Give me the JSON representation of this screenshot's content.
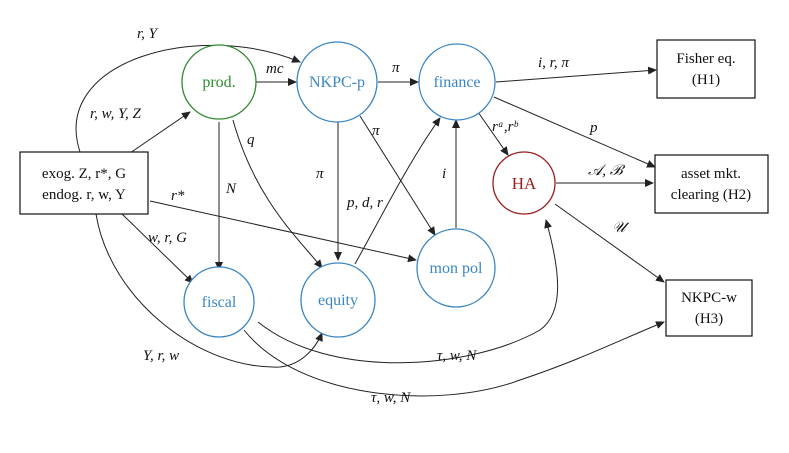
{
  "nodes": {
    "prod": {
      "label": "prod.",
      "color": "#2e8b2e"
    },
    "nkpc_p": {
      "label": "NKPC-p",
      "color": "#3a86c4"
    },
    "finance": {
      "label": "finance",
      "color": "#3a86c4"
    },
    "ha": {
      "label": "HA",
      "color": "#9b1c1c"
    },
    "mon_pol": {
      "label": "mon pol",
      "color": "#3a86c4"
    },
    "fiscal": {
      "label": "fiscal",
      "color": "#3a86c4"
    },
    "equity": {
      "label": "equity",
      "color": "#3a86c4"
    }
  },
  "boxes": {
    "exog": {
      "line1": "exog. Z, r*, G",
      "line2": "endog. r, w, Y"
    },
    "fisher": {
      "line1": "Fisher eq.",
      "line2": "(H1)"
    },
    "asset": {
      "line1": "asset mkt.",
      "line2": "clearing (H2)"
    },
    "nkpc_w": {
      "line1": "NKPC-w",
      "line2": "(H3)"
    }
  },
  "edge_labels": {
    "r_Y": "r, Y",
    "r_w_Y_Z": "r, w, Y, Z",
    "mc": "mc",
    "pi_top": "π",
    "i_r_pi": "i, r, π",
    "q": "q",
    "N": "N",
    "pi_mid": "π",
    "pi_left": "π",
    "p_d_r": "p, d, r",
    "i": "i",
    "ra_rb": "rᵃ,rᵇ",
    "p": "p",
    "A_B": "𝒜, ℬ",
    "U": "𝒰",
    "r_star": "r*",
    "w_r_G": "w, r, G",
    "Y_r_w": "Y, r, w",
    "tau_w_N_1": "τ, w, N",
    "tau_w_N_2": "τ, w, N"
  }
}
